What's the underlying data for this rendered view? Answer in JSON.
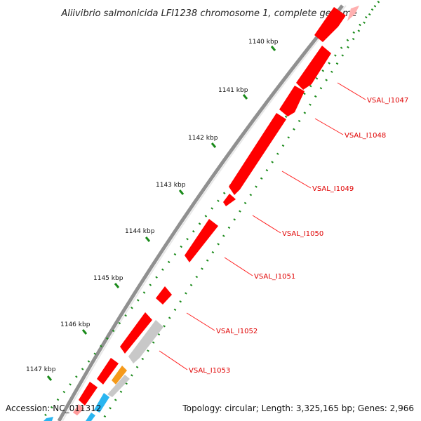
{
  "title": "Aliivibrio salmonicida LFI1238 chromosome 1, complete genome",
  "accession_label": "Accession: NC_011312",
  "summary_label": "Topology: circular; Length: 3,325,165 bp; Genes: 2,966",
  "colors": {
    "backbone": "#909090",
    "forward_gene": "#ff0000",
    "forward_gene_light": "#ff9a9a",
    "pseudo_gene": "#c8c8c8",
    "orange_gene": "#f59a1a",
    "blue_gene": "#2ab5f0",
    "label_line": "#ff2020",
    "label_text": "#e00000",
    "dots": "#1a8a1a"
  },
  "kbp_ticks": [
    "1140 kbp",
    "1141 kbp",
    "1142 kbp",
    "1143 kbp",
    "1144 kbp",
    "1145 kbp",
    "1146 kbp",
    "1147 kbp"
  ],
  "gene_labels": [
    "VSAL_I1047",
    "VSAL_I1048",
    "VSAL_I1049",
    "VSAL_I1050",
    "VSAL_I1051",
    "VSAL_I1052",
    "VSAL_I1053"
  ]
}
